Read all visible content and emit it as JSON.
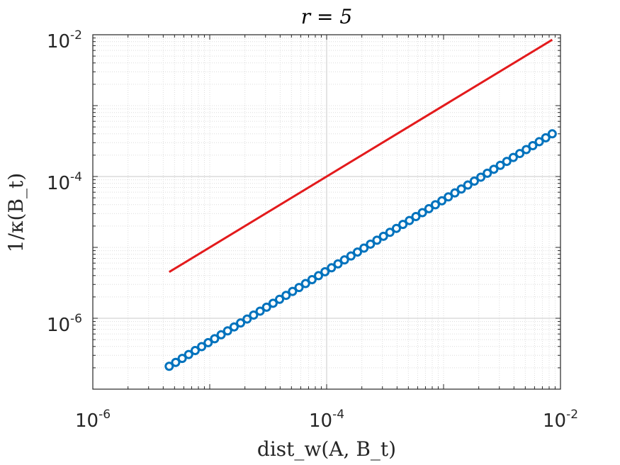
{
  "chart_data": {
    "type": "line",
    "title": "r = 5",
    "xlabel": "dist_w(A, B_t)",
    "ylabel": "1/κ(B_t)",
    "xscale": "log",
    "yscale": "log",
    "xlim": [
      1e-06,
      0.01
    ],
    "ylim": [
      1e-07,
      0.01
    ],
    "grid": "on (major and minor)",
    "x_ticks": [
      {
        "base": "10",
        "exp": "-6"
      },
      {
        "base": "10",
        "exp": "-4"
      },
      {
        "base": "10",
        "exp": "-2"
      }
    ],
    "y_ticks": [
      {
        "base": "10",
        "exp": "-6"
      },
      {
        "base": "10",
        "exp": "-4"
      },
      {
        "base": "10",
        "exp": "-2"
      }
    ],
    "series": [
      {
        "style": "solid line",
        "color": "#e31a1c",
        "x": [
          4.5e-06,
          0.0085
        ],
        "y": [
          4.5e-06,
          0.0085
        ]
      },
      {
        "style": "circle markers",
        "color": "#0072bd",
        "x_start": 4.5e-06,
        "x_end": 0.0085,
        "y_start": 2.1e-07,
        "y_end": 0.0004,
        "count": 60
      }
    ]
  },
  "colors": {
    "axis": "#262626",
    "grid_major": "#c8c8c8",
    "grid_minor": "#dcdcdc",
    "background": "#ffffff"
  }
}
